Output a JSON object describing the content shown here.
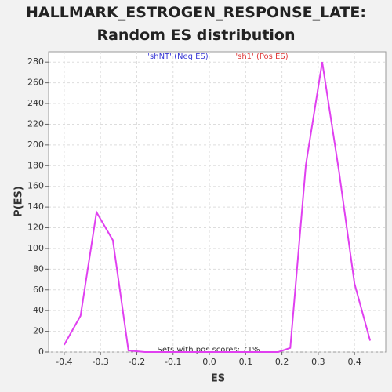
{
  "chart_data": {
    "type": "line",
    "title": "HALLMARK_ESTROGEN_RESPONSE_LATE: Random ES distribution",
    "xlabel": "ES",
    "ylabel": "P(ES)",
    "legend": [
      {
        "name": "'shNT' (Neg ES)",
        "color": "#3b3bd6"
      },
      {
        "name": "'sh1' (Pos ES)",
        "color": "#e03a3a"
      }
    ],
    "annotation": "Sets with pos scores: 71%",
    "x": [
      -0.4,
      -0.355,
      -0.311,
      -0.266,
      -0.223,
      -0.178,
      0.19,
      0.223,
      0.266,
      0.311,
      0.357,
      0.4,
      0.443
    ],
    "series": [
      {
        "name": "P(ES)",
        "color": "#e040f0",
        "values": [
          7,
          35,
          135,
          108,
          1.5,
          0,
          0,
          4,
          181,
          280,
          175,
          66,
          11
        ]
      }
    ],
    "xlim": [
      -0.443,
      0.486
    ],
    "ylim": [
      0,
      290
    ],
    "xticks": [
      -0.4,
      -0.3,
      -0.2,
      -0.1,
      {
        "value": 0,
        "label": "0.0"
      },
      0.1,
      0.2,
      0.3,
      0.4
    ],
    "yticks": [
      0,
      20,
      40,
      60,
      80,
      100,
      120,
      140,
      160,
      180,
      200,
      220,
      240,
      260,
      280
    ],
    "grid": true
  }
}
